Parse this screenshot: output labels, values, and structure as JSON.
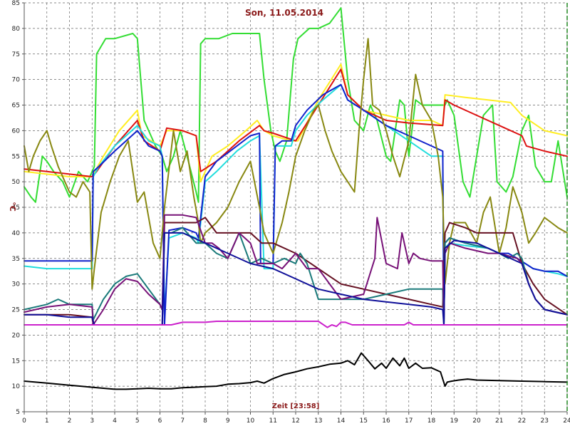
{
  "chart_data": {
    "type": "line",
    "title": "Son, 11.05.2014",
    "xlabel": "Zeit [23:58]",
    "ylabel": "°C",
    "xlim": [
      0,
      24
    ],
    "ylim": [
      5,
      85
    ],
    "xticks": [
      "0",
      "1",
      "2",
      "3",
      "4",
      "5",
      "6",
      "7",
      "8",
      "9",
      "10",
      "11",
      "12",
      "13",
      "14",
      "15",
      "16",
      "17",
      "18",
      "19",
      "20",
      "21",
      "22",
      "23",
      "24"
    ],
    "yticks": [
      "5",
      "10",
      "15",
      "20",
      "25",
      "30",
      "35",
      "40",
      "45",
      "50",
      "55",
      "60",
      "65",
      "70",
      "75",
      "80",
      "85"
    ],
    "grid": true,
    "series": [
      {
        "color": "#33dd33",
        "x": [
          0,
          0.3,
          0.5,
          0.8,
          1.0,
          1.3,
          1.7,
          2.0,
          2.4,
          2.8,
          3.0,
          3.1,
          3.2,
          3.6,
          4.0,
          4.8,
          5.0,
          5.3,
          5.8,
          6.1,
          6.3,
          6.6,
          6.9,
          7.2,
          7.6,
          7.7,
          7.8,
          8.0,
          8.6,
          9.2,
          10.4,
          10.6,
          10.9,
          11.1,
          11.3,
          11.6,
          11.9,
          12.1,
          12.6,
          13.0,
          13.5,
          14.0,
          14.3,
          14.6,
          15.0,
          15.3,
          15.6,
          16.0,
          16.2,
          16.6,
          16.8,
          17.0,
          17.3,
          17.6,
          18.0,
          18.6,
          18.7,
          19.0,
          19.4,
          19.7,
          20.0,
          20.3,
          20.7,
          20.9,
          21.3,
          21.6,
          22.0,
          22.3,
          22.6,
          23.0,
          23.3,
          23.6,
          24.0
        ],
        "y": [
          49,
          47,
          46,
          55,
          54,
          52,
          50,
          47,
          52,
          50,
          52,
          53,
          75,
          78,
          78,
          79,
          78,
          62,
          57,
          55,
          52,
          55,
          60,
          55,
          48,
          46,
          77,
          78,
          78,
          79,
          79,
          70,
          60,
          56,
          54,
          58,
          74,
          78,
          80,
          80,
          81,
          84,
          70,
          62,
          60,
          65,
          62,
          55,
          54,
          66,
          65,
          55,
          66,
          65,
          65,
          65,
          66,
          63,
          50,
          47,
          55,
          63,
          65,
          50,
          48,
          51,
          60,
          63,
          53,
          50,
          50,
          58,
          47
        ]
      },
      {
        "color": "#ffee22",
        "x": [
          0,
          1,
          2,
          3,
          3.5,
          4.2,
          5.0,
          5.2,
          6.0,
          6.3,
          7.0,
          7.6,
          7.8,
          8.3,
          9.0,
          9.8,
          10.3,
          10.6,
          11.0,
          11.8,
          12.1,
          13.0,
          14.0,
          14.3,
          15,
          16,
          17,
          18.0,
          18.5,
          18.6,
          19.5,
          20.5,
          21.5,
          22.0,
          23.0,
          24.0
        ],
        "y": [
          52,
          51.5,
          51,
          51,
          55,
          60,
          64,
          59,
          57,
          60,
          60,
          59,
          50,
          55,
          57,
          60,
          62,
          60,
          59,
          58,
          58,
          66,
          73,
          67,
          64,
          63,
          62,
          62,
          61,
          67,
          66.5,
          66,
          65.5,
          63,
          60,
          59
        ]
      },
      {
        "color": "#dd1111",
        "x": [
          0,
          1,
          2,
          3,
          3.2,
          4,
          5,
          5.3,
          6,
          6.3,
          7,
          7.6,
          7.8,
          8.5,
          9.5,
          10.4,
          10.6,
          11,
          12,
          13,
          14,
          14.3,
          15,
          16,
          17,
          18.5,
          18.6,
          19,
          20,
          21,
          22,
          22.2,
          23,
          24
        ],
        "y": [
          52.5,
          52,
          51.5,
          51,
          52,
          57,
          62,
          58,
          56,
          60.5,
          60,
          59,
          52,
          54,
          58,
          61,
          60,
          59.5,
          58,
          65,
          72,
          67,
          64,
          62,
          61.5,
          61,
          66,
          65,
          63,
          61,
          59,
          57,
          56,
          55
        ]
      },
      {
        "color": "#22dddd",
        "x": [
          0,
          1,
          2,
          3,
          3.05,
          3.3,
          4,
          5,
          5.5,
          6,
          6.1,
          6.2,
          6.4,
          7,
          7.6,
          7.7,
          8,
          8.5,
          9.4,
          10,
          10.4,
          10.6,
          11,
          11.1,
          11.4,
          11.8,
          12,
          12.5,
          13.2,
          14,
          14.3,
          15,
          16,
          17,
          18.0,
          18.5,
          18.55,
          18.6,
          18.8,
          19.5,
          20.5,
          21.0,
          21.4,
          21.8,
          22.5,
          23.0,
          23.6,
          24
        ],
        "y": [
          33.5,
          33,
          33,
          33,
          51,
          53,
          57,
          61,
          58,
          57,
          55,
          24,
          39,
          40,
          39,
          38,
          50,
          52,
          56,
          58,
          59,
          33,
          33,
          57,
          57,
          57,
          60,
          63,
          66,
          69,
          66,
          64,
          61,
          58,
          55,
          55,
          22,
          37,
          38,
          37.5,
          37,
          36,
          35.5,
          35,
          33,
          32.5,
          32,
          31.5
        ]
      },
      {
        "color": "#1122cc",
        "x": [
          0,
          1,
          2,
          3,
          3.05,
          3.3,
          4,
          5,
          5.5,
          6,
          6.1,
          6.2,
          6.4,
          7,
          7.6,
          7.7,
          8,
          8.5,
          9.4,
          10,
          10.4,
          10.45,
          11,
          11.1,
          11.4,
          11.8,
          12,
          12.5,
          13.2,
          14,
          14.3,
          15,
          16,
          17,
          18.0,
          18.5,
          18.55,
          18.6,
          18.8,
          19.5,
          20.5,
          21.0,
          21.4,
          21.8,
          22.5,
          23.0,
          23.6,
          24
        ],
        "y": [
          34.5,
          34.5,
          34.5,
          34.5,
          52,
          53,
          56,
          60,
          57,
          56,
          55,
          22,
          40.5,
          41,
          40,
          39,
          51,
          54,
          57,
          59,
          59.5,
          34,
          34,
          57,
          58,
          58,
          61,
          64,
          67,
          69,
          66,
          64,
          61,
          59,
          57,
          56,
          22,
          38,
          39,
          38,
          37,
          36,
          36,
          35,
          33,
          32.5,
          32.5,
          31.5
        ]
      },
      {
        "color": "#888811",
        "x": [
          0,
          0.2,
          0.4,
          0.7,
          1.0,
          1.2,
          1.5,
          2.0,
          2.3,
          2.6,
          2.9,
          3.0,
          3.1,
          3.4,
          3.8,
          4.2,
          4.6,
          5.0,
          5.3,
          5.7,
          6.0,
          6.2,
          6.6,
          6.9,
          7.2,
          7.5,
          7.7,
          7.8,
          8.0,
          8.5,
          9.0,
          9.5,
          10.0,
          10.4,
          10.6,
          11.0,
          11.4,
          11.7,
          12.0,
          12.4,
          12.8,
          13.0,
          13.3,
          13.6,
          14.0,
          14.3,
          14.6,
          14.8,
          15.0,
          15.2,
          15.4,
          15.7,
          16.0,
          16.3,
          16.6,
          17.0,
          17.3,
          17.6,
          18.0,
          18.3,
          18.5,
          18.6,
          18.8,
          19.0,
          19.5,
          20.0,
          20.3,
          20.6,
          21.0,
          21.3,
          21.6,
          22.0,
          22.3,
          22.6,
          23.0,
          23.3,
          23.6,
          24.0
        ],
        "y": [
          57,
          52,
          55,
          58,
          60,
          57,
          53,
          48,
          47,
          50,
          48,
          29,
          33,
          44,
          50,
          55,
          58,
          46,
          48,
          38,
          35,
          45,
          60,
          52,
          56,
          47,
          42,
          38,
          40,
          42,
          45,
          50,
          54,
          45,
          40,
          36,
          42,
          48,
          55,
          60,
          64,
          65,
          60,
          56,
          52,
          50,
          48,
          60,
          70,
          78,
          65,
          64,
          60,
          55,
          51,
          58,
          71,
          65,
          62,
          55,
          47,
          30,
          38,
          42,
          42,
          38,
          44,
          47,
          36,
          41,
          49,
          44,
          38,
          40,
          43,
          42,
          41,
          40
        ]
      },
      {
        "color": "#661122",
        "x": [
          0,
          1,
          2,
          3,
          3.05,
          3.5,
          4,
          5,
          5.5,
          6,
          6.1,
          6.2,
          7,
          7.6,
          8,
          8.5,
          9,
          10,
          10.5,
          11,
          12,
          13,
          14,
          15,
          16,
          17,
          18,
          18.5,
          18.6,
          18.8,
          19.5,
          20,
          20.5,
          21,
          21.6,
          22,
          22.5,
          23,
          24
        ],
        "y": [
          24,
          24,
          24,
          23.5,
          22,
          22,
          22,
          22,
          22,
          22,
          22,
          42,
          42,
          42,
          43,
          40,
          40,
          40,
          38,
          38,
          36,
          33,
          30,
          29,
          28,
          27,
          26,
          25.5,
          40,
          42,
          41,
          40,
          40,
          40,
          40,
          34,
          30,
          27,
          24
        ]
      },
      {
        "color": "#1a7a7a",
        "x": [
          0,
          1,
          1.5,
          2,
          3,
          3.05,
          3.5,
          4,
          4.5,
          5,
          5.5,
          6,
          6.1,
          6.2,
          6.5,
          7,
          7.6,
          8,
          8.5,
          9,
          9.5,
          10,
          10.5,
          11,
          11.5,
          12,
          12.2,
          12.5,
          13,
          14,
          15,
          16,
          17,
          18,
          18.5,
          18.55,
          18.6,
          18.8,
          19.5,
          20.5,
          21.0,
          21.4,
          21.8,
          22.0,
          22.3,
          22.6,
          23.0,
          23.5,
          24
        ],
        "y": [
          25,
          26,
          27,
          26,
          26,
          23,
          27,
          30,
          31.5,
          32,
          29,
          26,
          25,
          40,
          40,
          41,
          38,
          38,
          36,
          35,
          40,
          34,
          35,
          34,
          35,
          34,
          36,
          34,
          27,
          27,
          27,
          28,
          29,
          29,
          29,
          22,
          38,
          39,
          38,
          37,
          36,
          35,
          36,
          35,
          30,
          27,
          25,
          24.5,
          24
        ]
      },
      {
        "color": "#771177",
        "x": [
          0,
          1,
          2,
          3,
          3.05,
          3.5,
          4,
          4.5,
          5,
          5.5,
          6,
          6.1,
          6.2,
          7,
          7.6,
          8,
          8.3,
          8.6,
          9,
          9.5,
          10,
          10.3,
          10.6,
          11.0,
          11.4,
          11.8,
          12.0,
          12.5,
          13,
          14,
          15,
          15.5,
          15.6,
          16.0,
          16.5,
          16.7,
          17.0,
          17.2,
          17.5,
          18.0,
          18.5,
          18.55,
          18.6,
          18.8,
          19.5,
          20.5,
          21.0,
          21.4,
          21.8,
          22.0,
          22.3,
          22.6,
          23.0,
          23.5,
          24
        ],
        "y": [
          24.5,
          25.5,
          26,
          25.5,
          22,
          25,
          29,
          31,
          30.5,
          28,
          26,
          25,
          43.5,
          43.5,
          43,
          38,
          38,
          37,
          35,
          40,
          38,
          34,
          34,
          34,
          33,
          35,
          36,
          33,
          33,
          27,
          28,
          35,
          43,
          34,
          33,
          40,
          34,
          36,
          35,
          34.5,
          34.5,
          22,
          36,
          38,
          37,
          36,
          36,
          35.5,
          35,
          34,
          30,
          27,
          25,
          24.5,
          24
        ]
      },
      {
        "color": "#101099",
        "x": [
          0,
          1,
          2,
          3,
          3.1,
          3.5,
          4,
          5,
          6,
          6.1,
          6.2,
          6.5,
          7,
          8,
          9,
          10,
          10.5,
          11,
          12,
          13,
          14,
          15,
          16,
          17,
          18,
          18.5,
          18.55,
          18.6,
          19,
          20,
          21,
          22,
          22.3,
          22.6,
          23,
          23.5,
          24
        ],
        "y": [
          24,
          24,
          23.5,
          23.5,
          22,
          22,
          22,
          22,
          22,
          22,
          40,
          40,
          40,
          38,
          36,
          34,
          33.5,
          33,
          31,
          29,
          28,
          27,
          26.5,
          26,
          25.5,
          25,
          22,
          37,
          38.5,
          38,
          36,
          34,
          30,
          27,
          25,
          24.5,
          24
        ]
      },
      {
        "color": "#cc22cc",
        "x": [
          0,
          1,
          2,
          3,
          4,
          5,
          6,
          6.5,
          7,
          7.5,
          8,
          8.5,
          9,
          10,
          11,
          12,
          13,
          13.4,
          13.6,
          13.8,
          14.0,
          14.2,
          14.5,
          15,
          16,
          16.8,
          17.0,
          17.2,
          17.6,
          18,
          18.5,
          19,
          20,
          21,
          22,
          23,
          24
        ],
        "y": [
          22,
          22,
          22,
          22,
          22,
          22,
          22,
          22,
          22.5,
          22.5,
          22.5,
          22.7,
          22.7,
          22.7,
          22.7,
          22.7,
          22.7,
          21.5,
          22,
          21.7,
          22.5,
          22.5,
          22,
          22,
          22,
          22,
          22.5,
          22,
          22,
          22,
          22,
          22,
          22,
          22,
          22,
          22,
          22
        ]
      },
      {
        "color": "#000000",
        "x": [
          0,
          0.5,
          1,
          1.5,
          2,
          2.5,
          3,
          3.5,
          4,
          4.5,
          5,
          5.5,
          6,
          6.5,
          7,
          7.5,
          8,
          8.5,
          9,
          9.5,
          10,
          10.3,
          10.6,
          11,
          11.5,
          12,
          12.5,
          13,
          13.5,
          14,
          14.3,
          14.6,
          14.9,
          15.2,
          15.5,
          15.8,
          16.0,
          16.3,
          16.6,
          16.8,
          17.0,
          17.3,
          17.6,
          18.0,
          18.4,
          18.6,
          18.7,
          18.9,
          19.2,
          19.6,
          20,
          21,
          22,
          23,
          24
        ],
        "y": [
          11,
          10.8,
          10.6,
          10.4,
          10.2,
          10,
          9.8,
          9.6,
          9.4,
          9.4,
          9.5,
          9.6,
          9.5,
          9.5,
          9.7,
          9.8,
          9.9,
          10,
          10.4,
          10.5,
          10.7,
          11.0,
          10.6,
          11.5,
          12.3,
          12.8,
          13.4,
          13.8,
          14.3,
          14.5,
          15.0,
          14.2,
          16.5,
          15.0,
          13.4,
          14.5,
          13.5,
          15.5,
          14.0,
          15.5,
          13.5,
          14.5,
          13.5,
          13.6,
          12.8,
          10.0,
          10.8,
          11.0,
          11.2,
          11.4,
          11.2,
          11.1,
          11.0,
          10.9,
          10.8
        ]
      }
    ]
  }
}
